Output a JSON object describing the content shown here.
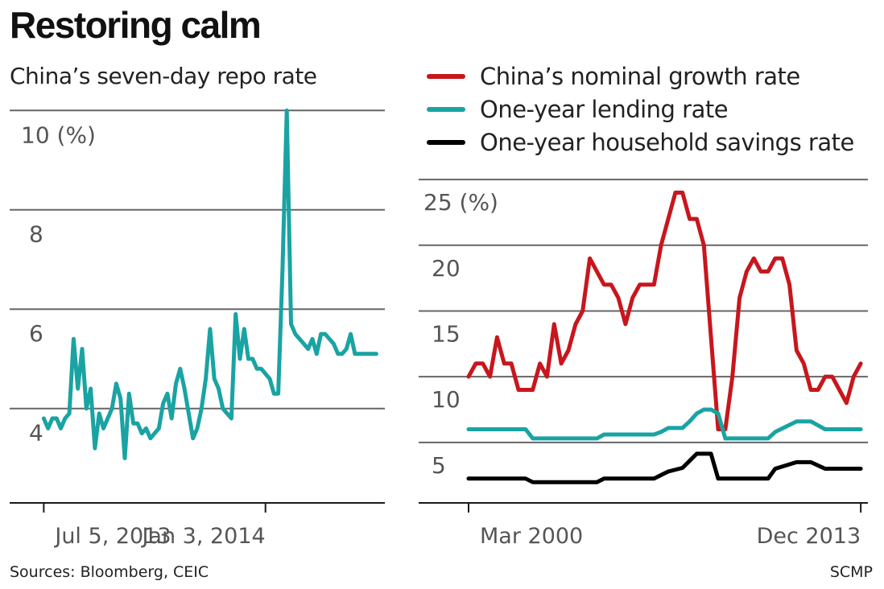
{
  "title": "Restoring calm",
  "footer": {
    "sources": "Sources: Bloomberg, CEIC",
    "credit": "SCMP"
  },
  "colors": {
    "repo": "#1aa3a3",
    "growth": "#c8161d",
    "lending": "#1aa3a3",
    "savings": "#000000",
    "grid": "#666666"
  },
  "chart_data": [
    {
      "type": "line",
      "title": "China’s seven-day repo rate",
      "unit_label": "10 (%)",
      "ylim": [
        2.1,
        10.15
      ],
      "yticks": [
        {
          "value": 4,
          "label": "4"
        },
        {
          "value": 6,
          "label": "6"
        },
        {
          "value": 8,
          "label": "8"
        },
        {
          "value": 10,
          "label": "10 (%)"
        }
      ],
      "xticks": [
        {
          "value": 0,
          "label": "Jul 5, 2013"
        },
        {
          "value": 26,
          "label": "Jan 3, 2014"
        }
      ],
      "xlim": [
        -4,
        40
      ],
      "series": [
        {
          "x": [
            0,
            0.5,
            1,
            1.5,
            2,
            2.5,
            3,
            3.5,
            4,
            4.5,
            5,
            5.5,
            6,
            6.5,
            7,
            7.5,
            8,
            8.5,
            9,
            9.5,
            10,
            10.5,
            11,
            11.5,
            12,
            12.5,
            13,
            13.5,
            14,
            14.5,
            15,
            15.5,
            16,
            16.5,
            17,
            17.5,
            18,
            18.5,
            19,
            19.5,
            20,
            20.5,
            21,
            21.5,
            22,
            22.5,
            23,
            23.5,
            24,
            24.5,
            25,
            25.5,
            26,
            26.5,
            27,
            27.5,
            28,
            28.5,
            29,
            29.5,
            30,
            30.5,
            31,
            31.5,
            32,
            32.5,
            33,
            33.5,
            34,
            34.5,
            35,
            35.5,
            36,
            36.5,
            37,
            37.5,
            38,
            38.5,
            39
          ],
          "values": [
            3.8,
            3.6,
            3.8,
            3.8,
            3.6,
            3.8,
            3.9,
            5.4,
            4.4,
            5.2,
            4,
            4.4,
            3.2,
            3.9,
            3.6,
            3.8,
            4,
            4.5,
            4.2,
            3,
            4.3,
            3.7,
            3.7,
            3.5,
            3.6,
            3.4,
            3.5,
            3.6,
            4.1,
            4.3,
            3.8,
            4.5,
            4.8,
            4.4,
            3.9,
            3.4,
            3.6,
            4,
            4.6,
            5.6,
            4.6,
            4.4,
            4,
            3.9,
            3.8,
            5.9,
            5,
            5.6,
            5,
            5,
            4.8,
            4.8,
            4.7,
            4.6,
            4.3,
            4.3,
            6.8,
            10,
            5.7,
            5.5,
            5.4,
            5.3,
            5.2,
            5.4,
            5.1,
            5.5,
            5.5,
            5.4,
            5.3,
            5.1,
            5.1,
            5.2,
            5.5,
            5.1,
            5.1,
            5.1,
            5.1,
            5.1,
            5.1
          ]
        }
      ]
    },
    {
      "type": "line",
      "unit_label": "25 (%)",
      "ylim": [
        0.4,
        25.8
      ],
      "yticks": [
        {
          "value": 5,
          "label": "5"
        },
        {
          "value": 10,
          "label": "10"
        },
        {
          "value": 15,
          "label": "15"
        },
        {
          "value": 20,
          "label": "20"
        },
        {
          "value": 25,
          "label": "25 (%)"
        }
      ],
      "xticks": [
        {
          "value": 0,
          "label": "Mar 2000"
        },
        {
          "value": 55,
          "label": "Dec 2013"
        }
      ],
      "xlim": [
        -7,
        56
      ],
      "series": [
        {
          "name": "China’s nominal growth rate",
          "x": [
            0,
            1,
            2,
            3,
            4,
            5,
            6,
            7,
            8,
            9,
            10,
            11,
            12,
            13,
            14,
            15,
            16,
            17,
            18,
            19,
            20,
            21,
            22,
            23,
            24,
            25,
            26,
            27,
            28,
            29,
            30,
            31,
            32,
            33,
            34,
            35,
            36,
            37,
            38,
            39,
            40,
            41,
            42,
            43,
            44,
            45,
            46,
            47,
            48,
            49,
            50,
            51,
            52,
            53,
            54,
            55
          ],
          "values": [
            10,
            11,
            11,
            10,
            13,
            11,
            11,
            9,
            9,
            9,
            11,
            10,
            14,
            11,
            12,
            14,
            15,
            19,
            18,
            17,
            17,
            16,
            14,
            16,
            17,
            17,
            17,
            20,
            22,
            24,
            24,
            22,
            22,
            20,
            13,
            6,
            6,
            10,
            16,
            18,
            19,
            18,
            18,
            19,
            19,
            17,
            12,
            11,
            9,
            9,
            10,
            10,
            9,
            8,
            10,
            11
          ]
        },
        {
          "name": "One-year lending rate",
          "x": [
            0,
            8,
            9,
            18,
            19,
            26,
            27,
            28,
            30,
            31,
            32,
            33,
            34,
            35,
            36,
            37,
            42,
            43,
            46,
            47,
            48,
            50,
            55
          ],
          "values": [
            6,
            6,
            5.3,
            5.3,
            5.6,
            5.6,
            5.8,
            6.1,
            6.1,
            6.6,
            7.2,
            7.5,
            7.5,
            7.2,
            5.3,
            5.3,
            5.3,
            5.8,
            6.6,
            6.6,
            6.6,
            6,
            6
          ]
        },
        {
          "name": "One-year household savings rate",
          "x": [
            0,
            8,
            9,
            18,
            19,
            26,
            27,
            28,
            30,
            31,
            32,
            33,
            34,
            35,
            36,
            37,
            42,
            43,
            46,
            47,
            48,
            50,
            55
          ],
          "values": [
            2.25,
            2.25,
            1.98,
            1.98,
            2.25,
            2.25,
            2.52,
            2.79,
            3.06,
            3.6,
            4.14,
            4.14,
            4.14,
            2.25,
            2.25,
            2.25,
            2.25,
            3,
            3.5,
            3.5,
            3.5,
            3,
            3
          ]
        }
      ]
    }
  ]
}
